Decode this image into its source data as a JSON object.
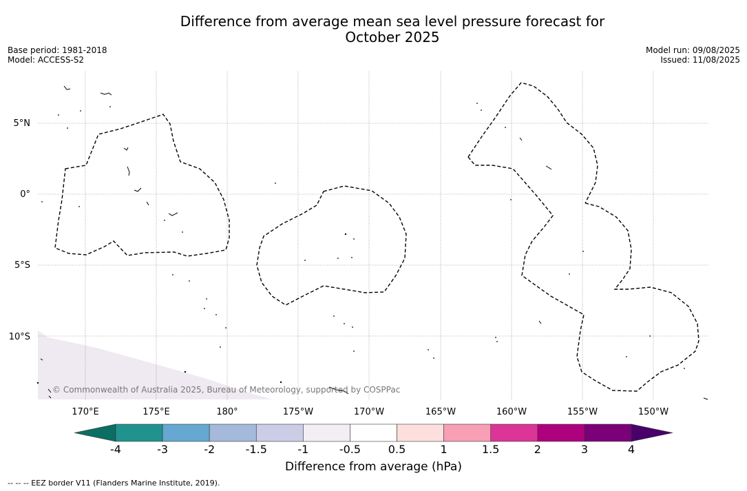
{
  "header": {
    "title_line1": "Difference from average mean sea level pressure forecast for",
    "title_line2": "October 2025",
    "base_period": "Base period: 1981-2018",
    "model": "Model: ACCESS-S2",
    "model_run": "Model run: 09/08/2025",
    "issued": "Issued: 11/08/2025"
  },
  "map": {
    "lat_labels": [
      "5°N",
      "0°",
      "5°S",
      "10°S"
    ],
    "lon_labels": [
      "170°E",
      "175°E",
      "180°",
      "175°W",
      "170°W",
      "165°W",
      "160°W",
      "155°W",
      "150°W"
    ],
    "copyright": "© Commonwealth of Australia 2025, Bureau of Meteorology, supported by COSPPac",
    "land_color": "#efe9f2"
  },
  "colorbar": {
    "title": "Difference from average (hPa)",
    "ticks": [
      "-4",
      "-3",
      "-2",
      "-1.5",
      "-1",
      "-0.5",
      "0.5",
      "1",
      "1.5",
      "2",
      "3",
      "4"
    ],
    "colors": [
      "#0b6e62",
      "#21938f",
      "#66a8d1",
      "#a5b9db",
      "#cbcde6",
      "#f3eef4",
      "#ffffff",
      "#fde0dd",
      "#f89fb6",
      "#dd3497",
      "#ae017e",
      "#7a0177",
      "#49006a"
    ]
  },
  "footnote": "-- -- -- EEZ border V11 (Flanders Marine Institute, 2019)."
}
